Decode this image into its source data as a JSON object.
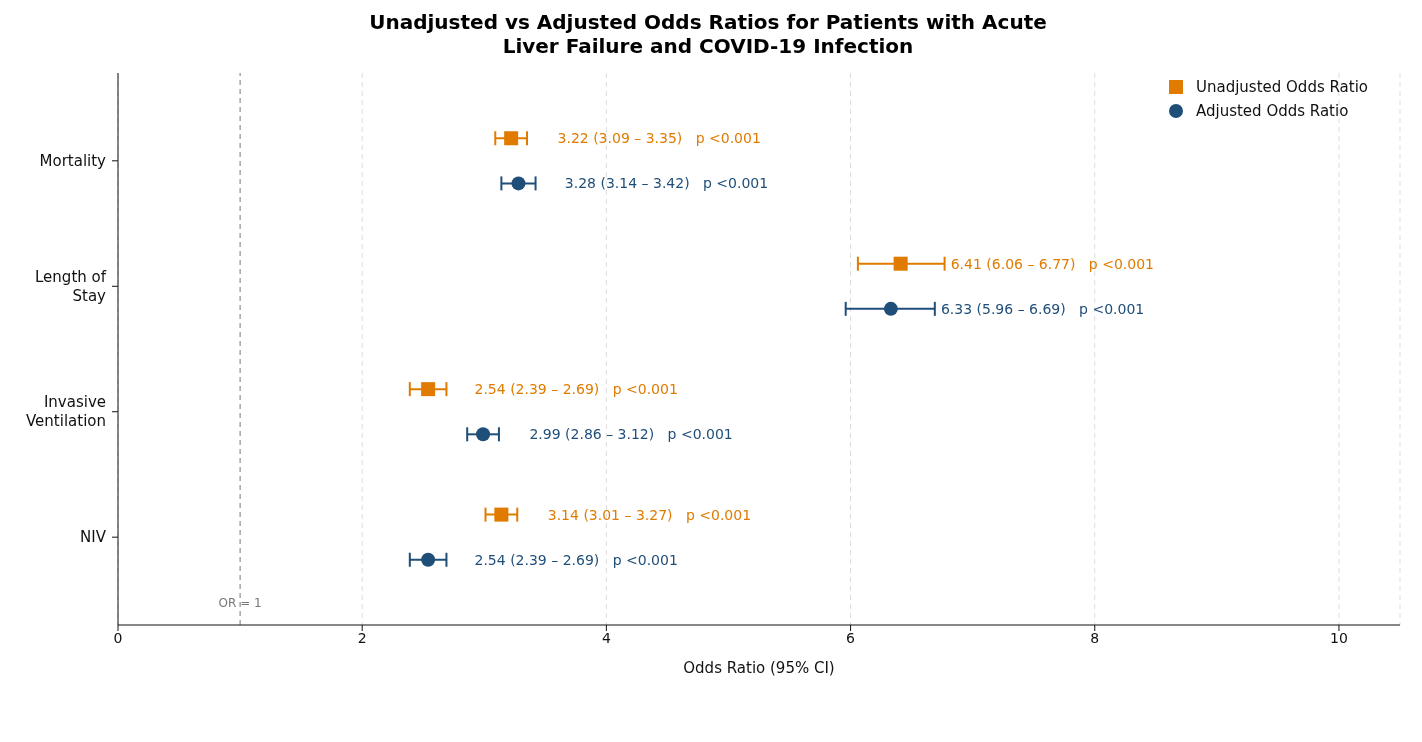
{
  "chart_data": {
    "type": "scatter",
    "title": "Unadjusted vs Adjusted Odds Ratios for Patients with Acute Liver Failure and COVID-19 Infection",
    "xlabel": "Odds Ratio (95% CI)",
    "orientation": "horizontal",
    "categories": [
      "Mortality",
      "Length of Stay",
      "Invasive Ventilation",
      "NIV"
    ],
    "series": [
      {
        "name": "Unadjusted Odds Ratio",
        "color": "#e07b00",
        "marker": "square",
        "values": [
          3.22,
          6.41,
          2.54,
          3.14
        ],
        "errors": [
          [
            3.09,
            3.35
          ],
          [
            6.06,
            6.77
          ],
          [
            2.39,
            2.69
          ],
          [
            3.01,
            3.27
          ]
        ],
        "value_labels": [
          "3.22 (3.09 – 3.35)   p <0.001",
          "6.41 (6.06 – 6.77)   p <0.001",
          "2.54 (2.39 – 2.69)   p <0.001",
          "3.14 (3.01 – 3.27)   p <0.001"
        ]
      },
      {
        "name": "Adjusted Odds Ratio",
        "color": "#1f4e79",
        "marker": "circle",
        "values": [
          3.28,
          6.33,
          2.99,
          2.54
        ],
        "errors": [
          [
            3.14,
            3.42
          ],
          [
            5.96,
            6.69
          ],
          [
            2.86,
            3.12
          ],
          [
            2.39,
            2.69
          ]
        ],
        "value_labels": [
          "3.28 (3.14 – 3.42)   p <0.001",
          "6.33 (5.96 – 6.69)   p <0.001",
          "2.99 (2.86 – 3.12)   p <0.001",
          "2.54 (2.39 – 2.69)   p <0.001"
        ]
      }
    ],
    "xlim": [
      0,
      10.5
    ],
    "xticks": [
      0,
      2,
      4,
      6,
      8,
      10
    ],
    "grid": "x",
    "legend": "top right",
    "ref_lines": [
      {
        "axis": "x",
        "value": 1,
        "label": "OR = 1",
        "color": "#777777",
        "line_style": "dashed"
      }
    ]
  }
}
